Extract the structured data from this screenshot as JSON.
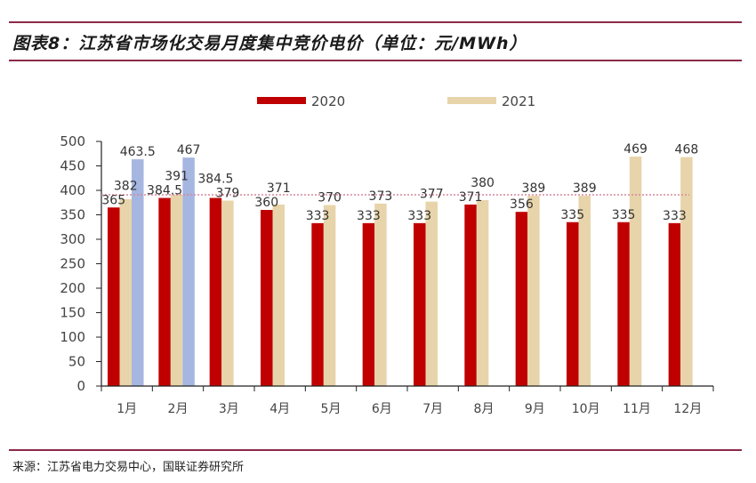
{
  "header": {
    "title": "图表8：江苏省市场化交易月度集中竞价电价（单位：元/MWh）"
  },
  "footer": {
    "source": "来源：江苏省电力交易中心，国联证券研究所"
  },
  "colors": {
    "rule": "#8b2a48",
    "series_2020": "#c00000",
    "series_2021": "#e8d4aa",
    "series_extra": "#a5b6e0",
    "reference_line": "#d9869c"
  },
  "chart_data": {
    "type": "bar",
    "title": "江苏省市场化交易月度集中竞价电价（单位：元/MWh）",
    "xlabel": "",
    "ylabel": "",
    "ylim": [
      0,
      500
    ],
    "yticks": [
      0,
      50,
      100,
      150,
      200,
      250,
      300,
      350,
      400,
      450,
      500
    ],
    "grid": false,
    "legend_position": "top-center",
    "categories": [
      "1月",
      "2月",
      "3月",
      "4月",
      "5月",
      "6月",
      "7月",
      "8月",
      "9月",
      "10月",
      "11月",
      "12月"
    ],
    "series": [
      {
        "name": "2020",
        "color": "#c00000",
        "values": [
          365,
          384.5,
          384.5,
          360,
          333,
          333,
          333,
          371,
          356,
          335,
          335,
          333
        ],
        "labels": [
          "365",
          "384.5",
          "384.5",
          "360",
          "333",
          "333",
          "333",
          "371",
          "356",
          "335",
          "335",
          "333"
        ]
      },
      {
        "name": "2021",
        "color": "#e8d4aa",
        "values": [
          382,
          391,
          379,
          371,
          370,
          373,
          377,
          380,
          389,
          389,
          469,
          468
        ],
        "labels": [
          "382",
          "391",
          "379",
          "371",
          "370",
          "373",
          "377",
          "380",
          "389",
          "389",
          "469",
          "468"
        ]
      },
      {
        "name": "",
        "color": "#a5b6e0",
        "values": [
          463.5,
          467,
          null,
          null,
          null,
          null,
          null,
          null,
          null,
          null,
          null,
          null
        ],
        "labels": [
          "463.5",
          "467",
          "",
          "",
          "",
          "",
          "",
          "",
          "",
          "",
          "",
          ""
        ]
      }
    ],
    "reference_line": {
      "value": 391,
      "style": "dotted"
    }
  }
}
